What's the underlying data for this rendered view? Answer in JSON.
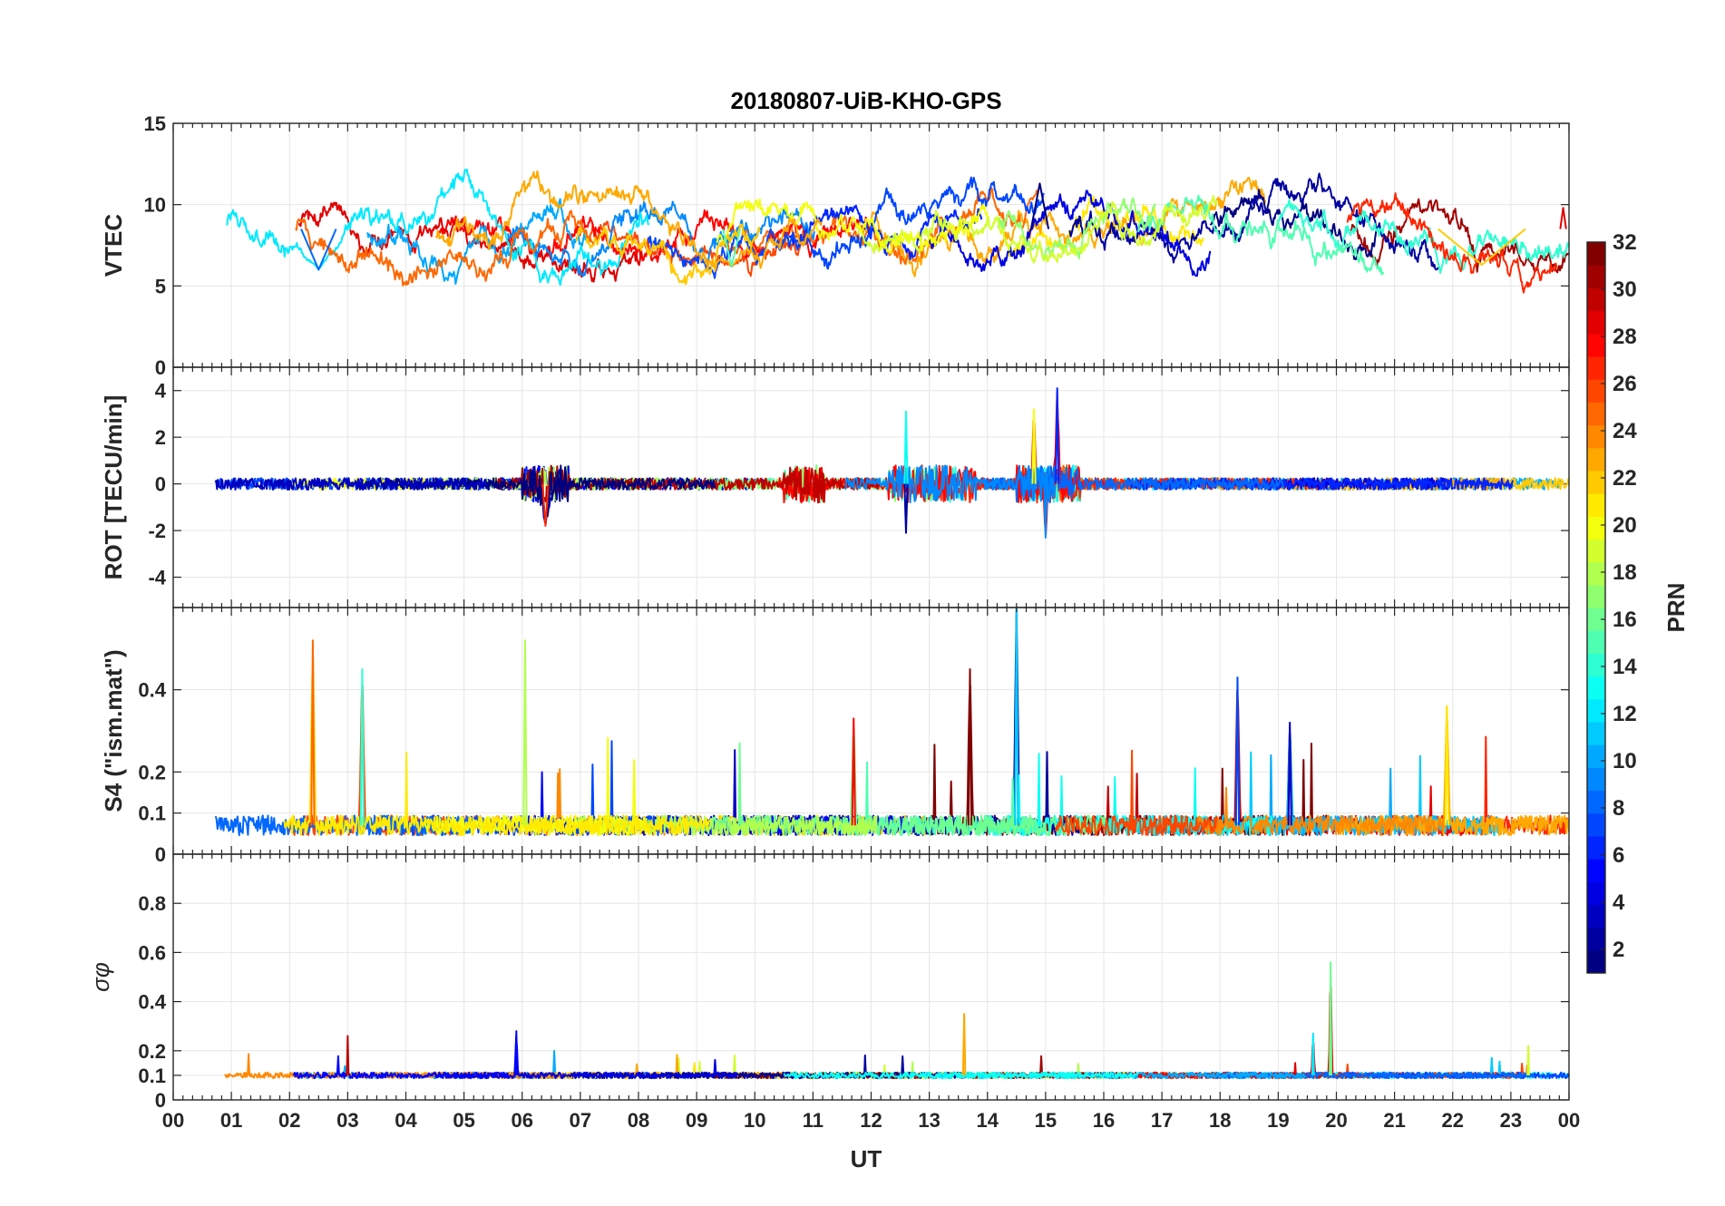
{
  "chart_data": {
    "type": "line",
    "title": "20180807-UiB-KHO-GPS",
    "xlabel": "UT",
    "x_ticks": [
      "00",
      "01",
      "02",
      "03",
      "04",
      "05",
      "06",
      "07",
      "08",
      "09",
      "10",
      "11",
      "12",
      "13",
      "14",
      "15",
      "16",
      "17",
      "18",
      "19",
      "20",
      "21",
      "22",
      "23",
      "00"
    ],
    "xlim": [
      0,
      24
    ],
    "grid": true,
    "colorbar": {
      "label": "PRN",
      "range": [
        1,
        32
      ],
      "ticks": [
        "2",
        "4",
        "6",
        "8",
        "10",
        "12",
        "14",
        "16",
        "18",
        "20",
        "22",
        "24",
        "26",
        "28",
        "30",
        "32"
      ],
      "colormap": "jet",
      "levels": 32
    },
    "panels": [
      {
        "id": "vtec",
        "ylabel": "VTEC",
        "ylim": [
          0,
          15
        ],
        "yticks": [
          0,
          5,
          10,
          15
        ],
        "ytick_labels": [
          "0",
          "5",
          "10",
          "15"
        ],
        "baseline": 8.5,
        "noise": 0.35,
        "seed": 11,
        "features": [
          {
            "t": 14.9,
            "v": 11.3,
            "w": 0.3
          },
          {
            "t": 2.5,
            "v": 6.0,
            "w": 0.6
          },
          {
            "t": 9.6,
            "v": 6.2,
            "w": 0.3
          },
          {
            "t": 22.5,
            "v": 6.3,
            "w": 1.5
          },
          {
            "t": 23.9,
            "v": 9.8,
            "w": 0.1
          }
        ]
      },
      {
        "id": "rot",
        "ylabel": "ROT [TECU/min]",
        "ylim": [
          -5.3,
          5.0
        ],
        "yticks": [
          -4,
          -2,
          0,
          2,
          4
        ],
        "ytick_labels": [
          "-4",
          "-2",
          "0",
          "2",
          "4"
        ],
        "baseline": 0.0,
        "noise": 0.25,
        "seed": 23,
        "features": [
          {
            "t": 15.2,
            "v": 4.1,
            "w": 0.05
          },
          {
            "t": 12.6,
            "v": 3.1,
            "w": 0.05
          },
          {
            "t": 14.8,
            "v": 3.2,
            "w": 0.05
          },
          {
            "t": 6.4,
            "v": -1.8,
            "w": 0.1
          },
          {
            "t": 12.6,
            "v": -2.1,
            "w": 0.05
          },
          {
            "t": 15.0,
            "v": -2.3,
            "w": 0.05
          }
        ]
      },
      {
        "id": "s4",
        "ylabel": "S4 (\"ism.mat\")",
        "ylim": [
          0,
          0.6
        ],
        "yticks": [
          0,
          0.1,
          0.2,
          0.4
        ],
        "ytick_labels": [
          "0",
          "0.1",
          "0.2",
          "0.4"
        ],
        "baseline": 0.07,
        "noise": 0.03,
        "seed": 37,
        "features": [
          {
            "t": 14.5,
            "v": 0.6,
            "w": 0.05
          },
          {
            "t": 6.05,
            "v": 0.52,
            "w": 0.05
          },
          {
            "t": 2.4,
            "v": 0.52,
            "w": 0.05
          },
          {
            "t": 13.7,
            "v": 0.45,
            "w": 0.05
          },
          {
            "t": 18.3,
            "v": 0.43,
            "w": 0.05
          },
          {
            "t": 3.25,
            "v": 0.45,
            "w": 0.05
          },
          {
            "t": 21.9,
            "v": 0.36,
            "w": 0.05
          },
          {
            "t": 11.7,
            "v": 0.33,
            "w": 0.05
          },
          {
            "t": 19.2,
            "v": 0.32,
            "w": 0.05
          }
        ]
      },
      {
        "id": "sigma",
        "ylabel": "σφ",
        "ylim": [
          0,
          1.0
        ],
        "yticks": [
          0,
          0.1,
          0.2,
          0.4,
          0.6,
          0.8
        ],
        "ytick_labels": [
          "0",
          "0.1",
          "0.2",
          "0.4",
          "0.6",
          "0.8"
        ],
        "baseline": 0.1,
        "noise": 0.012,
        "seed": 53,
        "features": [
          {
            "t": 19.9,
            "v": 0.56,
            "w": 0.03
          },
          {
            "t": 13.6,
            "v": 0.35,
            "w": 0.04
          },
          {
            "t": 3.0,
            "v": 0.26,
            "w": 0.03
          },
          {
            "t": 5.9,
            "v": 0.28,
            "w": 0.03
          },
          {
            "t": 19.6,
            "v": 0.27,
            "w": 0.03
          },
          {
            "t": 23.3,
            "v": 0.22,
            "w": 0.03
          }
        ]
      }
    ]
  }
}
